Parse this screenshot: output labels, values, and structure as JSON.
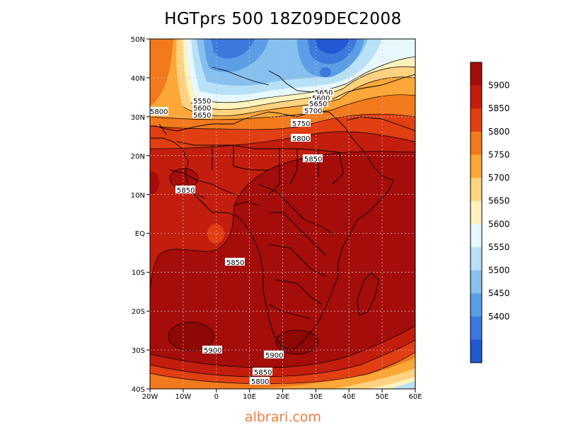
{
  "title": "HGTprs 500 18Z09DEC2008",
  "watermark": "albrari.com",
  "axes": {
    "lat_ticks": [
      "50N",
      "40N",
      "30N",
      "20N",
      "10N",
      "EQ",
      "10S",
      "20S",
      "30S",
      "40S"
    ],
    "lon_ticks": [
      "20W",
      "10W",
      "0",
      "10E",
      "20E",
      "30E",
      "40E",
      "50E",
      "60E"
    ]
  },
  "colorbar": {
    "levels": [
      "5900",
      "5850",
      "5800",
      "5750",
      "5700",
      "5650",
      "5600",
      "5550",
      "5500",
      "5450",
      "5400"
    ],
    "colors": [
      "#a50d0a",
      "#c31d0d",
      "#e13e12",
      "#f27a1c",
      "#fca737",
      "#ffd27f",
      "#fff3bd",
      "#e8f8ff",
      "#b8e0f7",
      "#87c0ef",
      "#5c9ee6",
      "#3b79dc",
      "#2259d2"
    ]
  },
  "contour_labels": [
    {
      "text": "5800"
    },
    {
      "text": "5550"
    },
    {
      "text": "5600"
    },
    {
      "text": "5650"
    },
    {
      "text": "5650"
    },
    {
      "text": "5600"
    },
    {
      "text": "5650"
    },
    {
      "text": "5700"
    },
    {
      "text": "5750"
    },
    {
      "text": "5800"
    },
    {
      "text": "5850"
    },
    {
      "text": "5850"
    },
    {
      "text": "5850"
    },
    {
      "text": "5900"
    },
    {
      "text": "5900"
    },
    {
      "text": "5850"
    },
    {
      "text": "5800"
    }
  ]
}
